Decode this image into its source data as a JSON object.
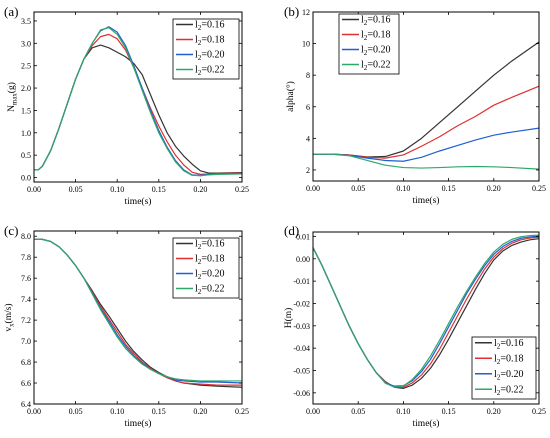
{
  "chart_data": [
    {
      "type": "line",
      "panel_label": "(a)",
      "xlabel": "time(s)",
      "ylabel": "N_max(g)",
      "ylabel_main": "N",
      "ylabel_sub": "max",
      "ylabel_tail": "(g)",
      "xlim": [
        0,
        0.25
      ],
      "ylim": [
        -0.1,
        3.7
      ],
      "xticks": [
        0.0,
        0.05,
        0.1,
        0.15,
        0.2,
        0.25
      ],
      "xtick_labels": [
        "0.00",
        "0.05",
        "0.10",
        "0.15",
        "0.20",
        "0.25"
      ],
      "yticks": [
        0.0,
        0.5,
        1.0,
        1.5,
        2.0,
        2.5,
        3.0,
        3.5
      ],
      "ytick_labels": [
        "0.0",
        "0.5",
        "1.0",
        "1.5",
        "2.0",
        "2.5",
        "3.0",
        "3.5"
      ],
      "grid": false,
      "legend_position": "top-right",
      "series": [
        {
          "name": "l2=0.16",
          "label_main": "l",
          "label_sub": "2",
          "label_tail": "=0.16",
          "color": "#333333",
          "x": [
            0,
            0.005,
            0.01,
            0.02,
            0.03,
            0.04,
            0.05,
            0.06,
            0.07,
            0.08,
            0.09,
            0.1,
            0.11,
            0.12,
            0.13,
            0.14,
            0.15,
            0.16,
            0.17,
            0.18,
            0.19,
            0.2,
            0.21,
            0.22,
            0.25
          ],
          "y": [
            0.17,
            0.17,
            0.25,
            0.6,
            1.1,
            1.65,
            2.2,
            2.65,
            2.9,
            2.96,
            2.9,
            2.8,
            2.7,
            2.55,
            2.3,
            1.85,
            1.4,
            1.0,
            0.7,
            0.48,
            0.3,
            0.15,
            0.1,
            0.1,
            0.11
          ]
        },
        {
          "name": "l2=0.18",
          "label_main": "l",
          "label_sub": "2",
          "label_tail": "=0.18",
          "color": "#e03030",
          "x": [
            0,
            0.005,
            0.01,
            0.02,
            0.03,
            0.04,
            0.05,
            0.06,
            0.07,
            0.08,
            0.09,
            0.1,
            0.11,
            0.12,
            0.13,
            0.14,
            0.15,
            0.16,
            0.17,
            0.18,
            0.19,
            0.2,
            0.21,
            0.22,
            0.25
          ],
          "y": [
            0.17,
            0.17,
            0.25,
            0.6,
            1.1,
            1.65,
            2.2,
            2.65,
            2.95,
            3.15,
            3.2,
            3.1,
            2.85,
            2.45,
            2.0,
            1.55,
            1.15,
            0.8,
            0.5,
            0.28,
            0.12,
            0.07,
            0.08,
            0.09,
            0.1
          ]
        },
        {
          "name": "l2=0.20",
          "label_main": "l",
          "label_sub": "2",
          "label_tail": "=0.20",
          "color": "#1f5fd6",
          "x": [
            0,
            0.005,
            0.01,
            0.02,
            0.03,
            0.04,
            0.05,
            0.06,
            0.07,
            0.08,
            0.09,
            0.1,
            0.11,
            0.12,
            0.13,
            0.14,
            0.15,
            0.16,
            0.17,
            0.18,
            0.19,
            0.2,
            0.21,
            0.22,
            0.25
          ],
          "y": [
            0.17,
            0.17,
            0.25,
            0.6,
            1.1,
            1.65,
            2.2,
            2.65,
            3.0,
            3.28,
            3.37,
            3.25,
            2.95,
            2.5,
            2.0,
            1.5,
            1.05,
            0.68,
            0.38,
            0.17,
            0.06,
            0.05,
            0.07,
            0.08,
            0.09
          ]
        },
        {
          "name": "l2=0.22",
          "label_main": "l",
          "label_sub": "2",
          "label_tail": "=0.22",
          "color": "#2ea86a",
          "x": [
            0,
            0.005,
            0.01,
            0.02,
            0.03,
            0.04,
            0.05,
            0.06,
            0.07,
            0.08,
            0.09,
            0.1,
            0.11,
            0.12,
            0.13,
            0.14,
            0.15,
            0.16,
            0.17,
            0.18,
            0.19,
            0.2,
            0.21,
            0.22,
            0.25
          ],
          "y": [
            0.17,
            0.17,
            0.25,
            0.6,
            1.1,
            1.65,
            2.2,
            2.65,
            3.0,
            3.3,
            3.35,
            3.2,
            2.9,
            2.45,
            1.95,
            1.45,
            1.0,
            0.65,
            0.35,
            0.15,
            0.05,
            0.04,
            0.06,
            0.07,
            0.08
          ]
        }
      ]
    },
    {
      "type": "line",
      "panel_label": "(b)",
      "xlabel": "time(s)",
      "ylabel": "alpha(°)",
      "xlim": [
        0,
        0.25
      ],
      "ylim": [
        1.3,
        12
      ],
      "xticks": [
        0.0,
        0.05,
        0.1,
        0.15,
        0.2,
        0.25
      ],
      "xtick_labels": [
        "0.00",
        "0.05",
        "0.10",
        "0.15",
        "0.20",
        "0.25"
      ],
      "yticks": [
        2,
        4,
        6,
        8,
        10,
        12
      ],
      "ytick_labels": [
        "2",
        "4",
        "6",
        "8",
        "10",
        "12"
      ],
      "grid": false,
      "legend_position": "top-left",
      "series": [
        {
          "name": "l2=0.16",
          "label_main": "l",
          "label_sub": "2",
          "label_tail": "=0.16",
          "color": "#333333",
          "x": [
            0,
            0.02,
            0.04,
            0.06,
            0.08,
            0.1,
            0.12,
            0.14,
            0.16,
            0.18,
            0.2,
            0.22,
            0.25
          ],
          "y": [
            3.0,
            3.0,
            2.95,
            2.82,
            2.85,
            3.2,
            4.0,
            5.0,
            6.0,
            7.0,
            8.0,
            8.9,
            10.1
          ]
        },
        {
          "name": "l2=0.18",
          "label_main": "l",
          "label_sub": "2",
          "label_tail": "=0.18",
          "color": "#e03030",
          "x": [
            0,
            0.02,
            0.04,
            0.06,
            0.08,
            0.1,
            0.12,
            0.14,
            0.16,
            0.18,
            0.2,
            0.22,
            0.25
          ],
          "y": [
            3.0,
            3.0,
            2.95,
            2.8,
            2.75,
            2.95,
            3.5,
            4.1,
            4.8,
            5.4,
            6.1,
            6.6,
            7.3
          ]
        },
        {
          "name": "l2=0.20",
          "label_main": "l",
          "label_sub": "2",
          "label_tail": "=0.20",
          "color": "#1f5fd6",
          "x": [
            0,
            0.02,
            0.04,
            0.06,
            0.08,
            0.1,
            0.12,
            0.14,
            0.16,
            0.18,
            0.2,
            0.22,
            0.25
          ],
          "y": [
            3.0,
            3.0,
            2.92,
            2.75,
            2.6,
            2.55,
            2.8,
            3.2,
            3.55,
            3.9,
            4.2,
            4.4,
            4.65
          ]
        },
        {
          "name": "l2=0.22",
          "label_main": "l",
          "label_sub": "2",
          "label_tail": "=0.22",
          "color": "#2ea86a",
          "x": [
            0,
            0.02,
            0.04,
            0.06,
            0.08,
            0.1,
            0.12,
            0.14,
            0.16,
            0.18,
            0.2,
            0.22,
            0.25
          ],
          "y": [
            3.0,
            3.0,
            2.9,
            2.6,
            2.3,
            2.15,
            2.12,
            2.15,
            2.2,
            2.22,
            2.2,
            2.15,
            2.05
          ]
        }
      ]
    },
    {
      "type": "line",
      "panel_label": "(c)",
      "xlabel": "time(s)",
      "ylabel": "vx(m/s)",
      "ylabel_main": "v",
      "ylabel_sub": "x",
      "ylabel_tail": "(m/s)",
      "xlim": [
        0,
        0.25
      ],
      "ylim": [
        6.4,
        8.05
      ],
      "xticks": [
        0.0,
        0.05,
        0.1,
        0.15,
        0.2,
        0.25
      ],
      "xtick_labels": [
        "0.00",
        "0.05",
        "0.10",
        "0.15",
        "0.20",
        "0.25"
      ],
      "yticks": [
        6.4,
        6.6,
        6.8,
        7.0,
        7.2,
        7.4,
        7.6,
        7.8,
        8.0
      ],
      "ytick_labels": [
        "6.4",
        "6.6",
        "6.8",
        "7.0",
        "7.2",
        "7.4",
        "7.6",
        "7.8",
        "8.0"
      ],
      "grid": false,
      "legend_position": "top-right",
      "series": [
        {
          "name": "l2=0.16",
          "label_main": "l",
          "label_sub": "2",
          "label_tail": "=0.16",
          "color": "#333333",
          "x": [
            0,
            0.01,
            0.02,
            0.03,
            0.04,
            0.05,
            0.06,
            0.07,
            0.08,
            0.09,
            0.1,
            0.11,
            0.12,
            0.13,
            0.14,
            0.15,
            0.16,
            0.17,
            0.18,
            0.2,
            0.22,
            0.25
          ],
          "y": [
            7.97,
            7.97,
            7.95,
            7.9,
            7.82,
            7.72,
            7.6,
            7.48,
            7.35,
            7.24,
            7.12,
            7.0,
            6.9,
            6.82,
            6.75,
            6.7,
            6.66,
            6.62,
            6.6,
            6.58,
            6.57,
            6.56
          ]
        },
        {
          "name": "l2=0.18",
          "label_main": "l",
          "label_sub": "2",
          "label_tail": "=0.18",
          "color": "#e03030",
          "x": [
            0,
            0.01,
            0.02,
            0.03,
            0.04,
            0.05,
            0.06,
            0.07,
            0.08,
            0.09,
            0.1,
            0.11,
            0.12,
            0.13,
            0.14,
            0.15,
            0.16,
            0.17,
            0.18,
            0.2,
            0.22,
            0.25
          ],
          "y": [
            7.97,
            7.97,
            7.95,
            7.9,
            7.82,
            7.72,
            7.6,
            7.47,
            7.33,
            7.21,
            7.09,
            6.97,
            6.88,
            6.8,
            6.74,
            6.69,
            6.65,
            6.62,
            6.6,
            6.59,
            6.58,
            6.58
          ]
        },
        {
          "name": "l2=0.20",
          "label_main": "l",
          "label_sub": "2",
          "label_tail": "=0.20",
          "color": "#1f5fd6",
          "x": [
            0,
            0.01,
            0.02,
            0.03,
            0.04,
            0.05,
            0.06,
            0.07,
            0.08,
            0.09,
            0.1,
            0.11,
            0.12,
            0.13,
            0.14,
            0.15,
            0.16,
            0.17,
            0.18,
            0.2,
            0.22,
            0.25
          ],
          "y": [
            7.97,
            7.97,
            7.95,
            7.9,
            7.82,
            7.72,
            7.6,
            7.46,
            7.31,
            7.19,
            7.06,
            6.95,
            6.86,
            6.79,
            6.73,
            6.69,
            6.66,
            6.63,
            6.62,
            6.61,
            6.61,
            6.6
          ]
        },
        {
          "name": "l2=0.22",
          "label_main": "l",
          "label_sub": "2",
          "label_tail": "=0.22",
          "color": "#2ea86a",
          "x": [
            0,
            0.01,
            0.02,
            0.03,
            0.04,
            0.05,
            0.06,
            0.07,
            0.08,
            0.09,
            0.1,
            0.11,
            0.12,
            0.13,
            0.14,
            0.15,
            0.16,
            0.17,
            0.18,
            0.2,
            0.22,
            0.25
          ],
          "y": [
            7.97,
            7.97,
            7.95,
            7.9,
            7.82,
            7.72,
            7.6,
            7.45,
            7.3,
            7.17,
            7.04,
            6.93,
            6.85,
            6.78,
            6.73,
            6.69,
            6.66,
            6.64,
            6.63,
            6.62,
            6.62,
            6.62
          ]
        }
      ]
    },
    {
      "type": "line",
      "panel_label": "(d)",
      "xlabel": "time(s)",
      "ylabel": "H(m)",
      "xlim": [
        0,
        0.25
      ],
      "ylim": [
        -0.065,
        0.012
      ],
      "xticks": [
        0.0,
        0.05,
        0.1,
        0.15,
        0.2,
        0.25
      ],
      "xtick_labels": [
        "0.00",
        "0.05",
        "0.10",
        "0.15",
        "0.20",
        "0.25"
      ],
      "yticks": [
        -0.06,
        -0.05,
        -0.04,
        -0.03,
        -0.02,
        -0.01,
        0.0,
        0.01
      ],
      "ytick_labels": [
        "-0.06",
        "-0.05",
        "-0.04",
        "-0.03",
        "-0.02",
        "-0.01",
        "0.00",
        "0.01"
      ],
      "grid": false,
      "legend_position": "bottom-right",
      "series": [
        {
          "name": "l2=0.16",
          "label_main": "l",
          "label_sub": "2",
          "label_tail": "=0.16",
          "color": "#333333",
          "x": [
            0,
            0.01,
            0.02,
            0.03,
            0.04,
            0.05,
            0.06,
            0.07,
            0.08,
            0.09,
            0.1,
            0.11,
            0.12,
            0.13,
            0.14,
            0.15,
            0.16,
            0.17,
            0.18,
            0.19,
            0.2,
            0.21,
            0.22,
            0.23,
            0.24,
            0.25
          ],
          "y": [
            0.005,
            -0.003,
            -0.012,
            -0.021,
            -0.03,
            -0.038,
            -0.045,
            -0.051,
            -0.055,
            -0.0575,
            -0.058,
            -0.0565,
            -0.0535,
            -0.049,
            -0.043,
            -0.036,
            -0.0285,
            -0.021,
            -0.0135,
            -0.0065,
            -0.0005,
            0.0035,
            0.006,
            0.0075,
            0.0085,
            0.009
          ]
        },
        {
          "name": "l2=0.18",
          "label_main": "l",
          "label_sub": "2",
          "label_tail": "=0.18",
          "color": "#e03030",
          "x": [
            0,
            0.01,
            0.02,
            0.03,
            0.04,
            0.05,
            0.06,
            0.07,
            0.08,
            0.09,
            0.1,
            0.11,
            0.12,
            0.13,
            0.14,
            0.15,
            0.16,
            0.17,
            0.18,
            0.19,
            0.2,
            0.21,
            0.22,
            0.23,
            0.24,
            0.25
          ],
          "y": [
            0.005,
            -0.003,
            -0.012,
            -0.021,
            -0.03,
            -0.038,
            -0.045,
            -0.051,
            -0.0553,
            -0.0573,
            -0.0575,
            -0.0555,
            -0.052,
            -0.047,
            -0.0405,
            -0.033,
            -0.0255,
            -0.018,
            -0.011,
            -0.0045,
            0.0008,
            0.0045,
            0.007,
            0.0085,
            0.0093,
            0.0097
          ]
        },
        {
          "name": "l2=0.20",
          "label_main": "l",
          "label_sub": "2",
          "label_tail": "=0.20",
          "color": "#1f5fd6",
          "x": [
            0,
            0.01,
            0.02,
            0.03,
            0.04,
            0.05,
            0.06,
            0.07,
            0.08,
            0.09,
            0.1,
            0.11,
            0.12,
            0.13,
            0.14,
            0.15,
            0.16,
            0.17,
            0.18,
            0.19,
            0.2,
            0.21,
            0.22,
            0.23,
            0.24,
            0.25
          ],
          "y": [
            0.005,
            -0.003,
            -0.012,
            -0.021,
            -0.03,
            -0.038,
            -0.045,
            -0.051,
            -0.0555,
            -0.057,
            -0.0568,
            -0.0545,
            -0.0505,
            -0.045,
            -0.038,
            -0.0305,
            -0.023,
            -0.0155,
            -0.009,
            -0.003,
            0.002,
            0.0055,
            0.0078,
            0.0092,
            0.0098,
            0.0102
          ]
        },
        {
          "name": "l2=0.22",
          "label_main": "l",
          "label_sub": "2",
          "label_tail": "=0.22",
          "color": "#2ea86a",
          "x": [
            0,
            0.01,
            0.02,
            0.03,
            0.04,
            0.05,
            0.06,
            0.07,
            0.08,
            0.09,
            0.1,
            0.11,
            0.12,
            0.13,
            0.14,
            0.15,
            0.16,
            0.17,
            0.18,
            0.19,
            0.2,
            0.21,
            0.22,
            0.23,
            0.24,
            0.25
          ],
          "y": [
            0.005,
            -0.003,
            -0.012,
            -0.021,
            -0.03,
            -0.038,
            -0.045,
            -0.051,
            -0.0557,
            -0.0575,
            -0.057,
            -0.054,
            -0.0495,
            -0.0435,
            -0.0365,
            -0.029,
            -0.0215,
            -0.0145,
            -0.008,
            -0.002,
            0.003,
            0.0065,
            0.0087,
            0.0099,
            0.0104,
            0.0106
          ]
        }
      ]
    }
  ]
}
